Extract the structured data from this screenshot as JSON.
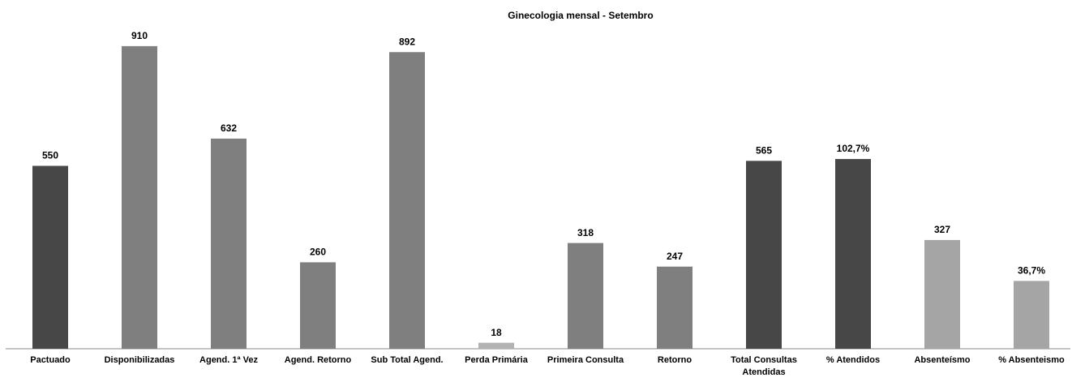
{
  "chart_data": {
    "type": "bar",
    "title": "Ginecologia mensal - Setembro",
    "categories": [
      "Pactuado",
      "Disponibilizadas",
      "Agend. 1ª Vez",
      "Agend. Retorno",
      "Sub Total Agend.",
      "Perda Primária",
      "Primeira Consulta",
      "Retorno",
      "Total Consultas Atendidas",
      "% Atendidos",
      "Absenteísmo",
      "% Absenteismo"
    ],
    "values": [
      550,
      910,
      632,
      260,
      892,
      18,
      318,
      247,
      565,
      102.7,
      327,
      36.7
    ],
    "value_labels": [
      "550",
      "910",
      "632",
      "260",
      "892",
      "18",
      "318",
      "247",
      "565",
      "102,7%",
      "327",
      "36,7%"
    ],
    "colors": [
      "#474747",
      "#7f7f7f",
      "#7f7f7f",
      "#7f7f7f",
      "#7f7f7f",
      "#b2b2b2",
      "#7f7f7f",
      "#7f7f7f",
      "#474747",
      "#474747",
      "#a5a5a5",
      "#a5a5a5"
    ],
    "axes": [
      "y",
      "y",
      "y",
      "y",
      "y",
      "y",
      "y",
      "y",
      "y",
      "y2",
      "y",
      "y2"
    ],
    "ylim": [
      0,
      1000
    ],
    "y2lim": [
      0,
      180
    ],
    "grid": false
  }
}
